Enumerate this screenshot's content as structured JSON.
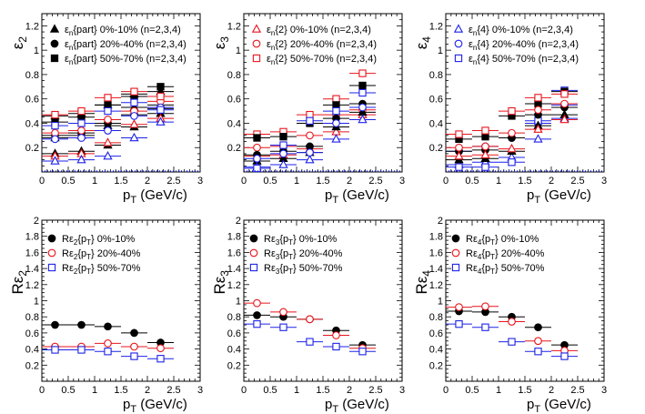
{
  "chart_data": [
    {
      "type": "scatter",
      "ylabel": "ε",
      "ylabel_sub": "2",
      "xlabel": "p",
      "xlabel_sub": "T",
      "xlabel_unit": " (GeV/c)",
      "xlim": [
        0,
        3
      ],
      "ylim": [
        0,
        1.3
      ],
      "xticks": [
        0,
        0.5,
        1,
        1.5,
        2,
        2.5,
        3
      ],
      "xtick_labels": [
        "0",
        "0.5",
        "1",
        "1.5",
        "2",
        "2.5",
        "3"
      ],
      "yticks": [
        0.2,
        0.4,
        0.6,
        0.8,
        1,
        1.2
      ],
      "ytick_labels": [
        "0.2",
        "0.4",
        "0.6",
        "0.8",
        "1",
        "1.2"
      ],
      "x": [
        0.25,
        0.75,
        1.25,
        1.75,
        2.25
      ],
      "series": [
        {
          "legend_prefix": "ε",
          "legend_sub": "n",
          "legend_brace": "part",
          "legend_text": " 0%-10% (n=2,3,4)",
          "marker": "triangle",
          "fill": true,
          "color": "#000000",
          "sets": [
            {
              "values": [
                0.15,
                0.17,
                0.22,
                0.37,
                0.48
              ]
            },
            {
              "values": [
                0.28,
                0.3,
                0.38,
                0.53,
                0.55
              ]
            },
            {
              "values": [
                0.46,
                0.48,
                0.55,
                0.64,
                0.66
              ]
            }
          ]
        },
        {
          "legend_prefix": "ε",
          "legend_sub": "n",
          "legend_brace": "part",
          "legend_text": " 20%-40% (n=2,3,4)",
          "marker": "circle",
          "fill": true,
          "color": "#000000",
          "sets": [
            {
              "values": [
                0.3,
                0.32,
                0.4,
                0.47,
                0.52
              ]
            }
          ]
        },
        {
          "legend_prefix": "ε",
          "legend_sub": "n",
          "legend_brace": "part",
          "legend_text": " 50%-70% (n=2,3,4)",
          "marker": "square",
          "fill": true,
          "color": "#000000",
          "sets": [
            {
              "values": [
                0.41,
                0.45,
                0.55,
                0.62,
                0.7
              ]
            }
          ]
        },
        {
          "marker": "triangle",
          "fill": false,
          "color": "#e8141c",
          "sets": [
            {
              "values": [
                0.13,
                0.15,
                0.24,
                0.39,
                0.44
              ]
            }
          ]
        },
        {
          "marker": "circle",
          "fill": false,
          "color": "#e8141c",
          "sets": [
            {
              "values": [
                0.32,
                0.34,
                0.43,
                0.5,
                0.58
              ]
            }
          ]
        },
        {
          "marker": "square",
          "fill": false,
          "color": "#e8141c",
          "sets": [
            {
              "values": [
                0.47,
                0.5,
                0.61,
                0.66,
                0.62
              ]
            }
          ]
        },
        {
          "marker": "triangle",
          "fill": false,
          "color": "#1c22e8",
          "sets": [
            {
              "values": [
                0.09,
                0.1,
                0.13,
                0.28,
                0.41
              ]
            }
          ]
        },
        {
          "marker": "circle",
          "fill": false,
          "color": "#1c22e8",
          "sets": [
            {
              "values": [
                0.27,
                0.28,
                0.34,
                0.46,
                0.53
              ]
            }
          ]
        },
        {
          "marker": "square",
          "fill": false,
          "color": "#1c22e8",
          "sets": [
            {
              "values": [
                0.38,
                0.4,
                0.5,
                0.57,
                0.51
              ]
            }
          ]
        }
      ]
    },
    {
      "type": "scatter",
      "ylabel": "ε",
      "ylabel_sub": "3",
      "xlabel": "p",
      "xlabel_sub": "T",
      "xlabel_unit": " (GeV/c)",
      "xlim": [
        0,
        3
      ],
      "ylim": [
        0,
        1.3
      ],
      "xticks": [
        0,
        0.5,
        1,
        1.5,
        2,
        2.5,
        3
      ],
      "xtick_labels": [
        "0",
        "0.5",
        "1",
        "1.5",
        "2",
        "2.5",
        "3"
      ],
      "yticks": [
        0.2,
        0.4,
        0.6,
        0.8,
        1,
        1.2
      ],
      "ytick_labels": [
        "0.2",
        "0.4",
        "0.6",
        "0.8",
        "1",
        "1.2"
      ],
      "x": [
        0.25,
        0.75,
        1.25,
        1.75,
        2.25
      ],
      "series": [
        {
          "legend_prefix": "ε",
          "legend_sub": "n",
          "legend_brace": "2",
          "legend_text": " 0%-10% (n=2,3,4)",
          "marker": "triangle",
          "fill": false,
          "color": "#e8141c",
          "sets": [
            {
              "values": [
                0.13,
                0.14,
                0.19,
                0.33,
                0.47
              ]
            }
          ]
        },
        {
          "legend_prefix": "ε",
          "legend_sub": "n",
          "legend_brace": "2",
          "legend_text": " 20%-40% (n=2,3,4)",
          "marker": "circle",
          "fill": false,
          "color": "#e8141c",
          "sets": [
            {
              "values": [
                0.2,
                0.21,
                0.3,
                0.47,
                0.51
              ]
            }
          ]
        },
        {
          "legend_prefix": "ε",
          "legend_sub": "n",
          "legend_brace": "2",
          "legend_text": " 50%-70% (n=2,3,4)",
          "marker": "square",
          "fill": false,
          "color": "#e8141c",
          "sets": [
            {
              "values": [
                0.31,
                0.33,
                0.47,
                0.6,
                0.81
              ]
            }
          ]
        },
        {
          "marker": "triangle",
          "fill": true,
          "color": "#000000",
          "sets": [
            {
              "values": [
                0.09,
                0.11,
                0.16,
                0.37,
                0.49
              ]
            }
          ]
        },
        {
          "marker": "circle",
          "fill": true,
          "color": "#000000",
          "sets": [
            {
              "values": [
                0.14,
                0.17,
                0.21,
                0.44,
                0.56
              ]
            }
          ]
        },
        {
          "marker": "square",
          "fill": true,
          "color": "#000000",
          "sets": [
            {
              "values": [
                0.28,
                0.29,
                0.4,
                0.55,
                0.71
              ]
            }
          ]
        },
        {
          "marker": "triangle",
          "fill": false,
          "color": "#1c22e8",
          "sets": [
            {
              "values": [
                0.04,
                0.06,
                0.1,
                0.27,
                0.43
              ]
            }
          ]
        },
        {
          "marker": "circle",
          "fill": false,
          "color": "#1c22e8",
          "sets": [
            {
              "values": [
                0.11,
                0.15,
                0.16,
                0.4,
                0.53
              ]
            }
          ]
        },
        {
          "marker": "square",
          "fill": false,
          "color": "#1c22e8",
          "sets": [
            {
              "values": [
                0.03,
                0.22,
                0.42,
                0.5,
                0.65
              ]
            }
          ]
        }
      ]
    },
    {
      "type": "scatter",
      "ylabel": "ε",
      "ylabel_sub": "4",
      "xlabel": "p",
      "xlabel_sub": "T",
      "xlabel_unit": " (GeV/c)",
      "xlim": [
        0,
        3
      ],
      "ylim": [
        0,
        1.3
      ],
      "xticks": [
        0,
        0.5,
        1,
        1.5,
        2,
        2.5,
        3
      ],
      "xtick_labels": [
        "0",
        "0.5",
        "1",
        "1.5",
        "2",
        "2.5",
        "3"
      ],
      "yticks": [
        0.2,
        0.4,
        0.6,
        0.8,
        1,
        1.2
      ],
      "ytick_labels": [
        "0.2",
        "0.4",
        "0.6",
        "0.8",
        "1",
        "1.2"
      ],
      "x": [
        0.25,
        0.75,
        1.25,
        1.75,
        2.25
      ],
      "series": [
        {
          "legend_prefix": "ε",
          "legend_sub": "n",
          "legend_brace": "4",
          "legend_text": " 0%-10% (n=2,3,4)",
          "marker": "triangle",
          "fill": false,
          "color": "#1c22e8",
          "sets": [
            {
              "values": [
                0.06,
                0.08,
                0.12,
                0.27,
                0.44
              ]
            }
          ]
        },
        {
          "legend_prefix": "ε",
          "legend_sub": "n",
          "legend_brace": "4",
          "legend_text": " 20%-40% (n=2,3,4)",
          "marker": "circle",
          "fill": false,
          "color": "#1c22e8",
          "sets": [
            {
              "values": [
                0.17,
                0.21,
                0.28,
                0.4,
                0.55
              ]
            }
          ]
        },
        {
          "legend_prefix": "ε",
          "legend_sub": "n",
          "legend_brace": "4",
          "legend_text": " 50%-70% (n=2,3,4)",
          "marker": "square",
          "fill": false,
          "color": "#1c22e8",
          "sets": [
            {
              "values": [
                0.04,
                0.04,
                0.08,
                0.42,
                0.67
              ]
            }
          ]
        },
        {
          "marker": "triangle",
          "fill": true,
          "color": "#000000",
          "sets": [
            {
              "values": [
                0.1,
                0.11,
                0.17,
                0.38,
                0.47
              ]
            }
          ]
        },
        {
          "marker": "circle",
          "fill": true,
          "color": "#000000",
          "sets": [
            {
              "values": [
                0.17,
                0.18,
                0.28,
                0.47,
                0.53
              ]
            }
          ]
        },
        {
          "marker": "square",
          "fill": true,
          "color": "#000000",
          "sets": [
            {
              "values": [
                0.27,
                0.29,
                0.46,
                0.56,
                0.66
              ]
            }
          ]
        },
        {
          "marker": "triangle",
          "fill": false,
          "color": "#e8141c",
          "sets": [
            {
              "values": [
                0.13,
                0.14,
                0.19,
                0.35,
                0.43
              ]
            }
          ]
        },
        {
          "marker": "circle",
          "fill": false,
          "color": "#e8141c",
          "sets": [
            {
              "values": [
                0.2,
                0.21,
                0.32,
                0.51,
                0.56
              ]
            }
          ]
        },
        {
          "marker": "square",
          "fill": false,
          "color": "#e8141c",
          "sets": [
            {
              "values": [
                0.31,
                0.34,
                0.5,
                0.61,
                0.64
              ]
            }
          ]
        }
      ]
    },
    {
      "type": "scatter",
      "ylabel": "Rε",
      "ylabel_sub": "2",
      "xlabel": "p",
      "xlabel_sub": "T",
      "xlabel_unit": " (GeV/c)",
      "xlim": [
        0,
        3
      ],
      "ylim": [
        0,
        2
      ],
      "xticks": [
        0,
        0.5,
        1,
        1.5,
        2,
        2.5,
        3
      ],
      "xtick_labels": [
        "0",
        "0.5",
        "1",
        "1.5",
        "2",
        "2.5",
        "3"
      ],
      "yticks": [
        0.2,
        0.4,
        0.6,
        0.8,
        1,
        1.2,
        1.4,
        1.6,
        1.8,
        2
      ],
      "ytick_labels": [
        "0.2",
        "0.4",
        "0.6",
        "0.8",
        "1",
        "1.2",
        "1.4",
        "1.6",
        "1.8",
        "2"
      ],
      "x": [
        0.25,
        0.75,
        1.25,
        1.75,
        2.25
      ],
      "series": [
        {
          "legend_prefix": "Rε",
          "legend_sub": "2",
          "legend_brace": "p",
          "legend_brace_sub": "T",
          "legend_text": " 0%-10%",
          "marker": "circle",
          "fill": true,
          "color": "#000000",
          "sets": [
            {
              "values": [
                0.7,
                0.7,
                0.68,
                0.6,
                0.48
              ]
            }
          ]
        },
        {
          "legend_prefix": "Rε",
          "legend_sub": "2",
          "legend_brace": "p",
          "legend_brace_sub": "T",
          "legend_text": " 20%-40%",
          "marker": "circle",
          "fill": false,
          "color": "#e8141c",
          "sets": [
            {
              "values": [
                0.43,
                0.43,
                0.47,
                0.43,
                0.41
              ]
            }
          ]
        },
        {
          "legend_prefix": "Rε",
          "legend_sub": "2",
          "legend_brace": "p",
          "legend_brace_sub": "T",
          "legend_text": " 50%-70%",
          "marker": "square",
          "fill": false,
          "color": "#1c22e8",
          "sets": [
            {
              "values": [
                0.39,
                0.39,
                0.37,
                0.31,
                0.28
              ]
            }
          ]
        }
      ]
    },
    {
      "type": "scatter",
      "ylabel": "Rε",
      "ylabel_sub": "3",
      "xlabel": "p",
      "xlabel_sub": "T",
      "xlabel_unit": " (GeV/c)",
      "xlim": [
        0,
        3
      ],
      "ylim": [
        0,
        2
      ],
      "xticks": [
        0,
        0.5,
        1,
        1.5,
        2,
        2.5,
        3
      ],
      "xtick_labels": [
        "0",
        "0.5",
        "1",
        "1.5",
        "2",
        "2.5",
        "3"
      ],
      "yticks": [
        0.2,
        0.4,
        0.6,
        0.8,
        1,
        1.2,
        1.4,
        1.6,
        1.8,
        2
      ],
      "ytick_labels": [
        "0.2",
        "0.4",
        "0.6",
        "0.8",
        "1",
        "1.2",
        "1.4",
        "1.6",
        "1.8",
        "2"
      ],
      "x": [
        0.25,
        0.75,
        1.25,
        1.75,
        2.25
      ],
      "series": [
        {
          "legend_prefix": "Rε",
          "legend_sub": "3",
          "legend_brace": "p",
          "legend_brace_sub": "T",
          "legend_text": " 0%-10%",
          "marker": "circle",
          "fill": true,
          "color": "#000000",
          "sets": [
            {
              "values": [
                0.82,
                0.8,
                0.77,
                0.63,
                0.45
              ]
            }
          ]
        },
        {
          "legend_prefix": "Rε",
          "legend_sub": "3",
          "legend_brace": "p",
          "legend_brace_sub": "T",
          "legend_text": " 20%-40%",
          "marker": "circle",
          "fill": false,
          "color": "#e8141c",
          "sets": [
            {
              "values": [
                0.97,
                0.86,
                0.77,
                0.57,
                0.41
              ]
            }
          ]
        },
        {
          "legend_prefix": "Rε",
          "legend_sub": "3",
          "legend_brace": "p",
          "legend_brace_sub": "T",
          "legend_text": " 50%-70%",
          "marker": "square",
          "fill": false,
          "color": "#1c22e8",
          "sets": [
            {
              "values": [
                0.71,
                0.67,
                0.49,
                0.43,
                0.37
              ]
            }
          ]
        }
      ]
    },
    {
      "type": "scatter",
      "ylabel": "Rε",
      "ylabel_sub": "4",
      "xlabel": "p",
      "xlabel_sub": "T",
      "xlabel_unit": " (GeV/c)",
      "xlim": [
        0,
        3
      ],
      "ylim": [
        0,
        2
      ],
      "xticks": [
        0,
        0.5,
        1,
        1.5,
        2,
        2.5,
        3
      ],
      "xtick_labels": [
        "0",
        "0.5",
        "1",
        "1.5",
        "2",
        "2.5",
        "3"
      ],
      "yticks": [
        0.2,
        0.4,
        0.6,
        0.8,
        1,
        1.2,
        1.4,
        1.6,
        1.8,
        2
      ],
      "ytick_labels": [
        "0.2",
        "0.4",
        "0.6",
        "0.8",
        "1",
        "1.2",
        "1.4",
        "1.6",
        "1.8",
        "2"
      ],
      "x": [
        0.25,
        0.75,
        1.25,
        1.75,
        2.25
      ],
      "series": [
        {
          "legend_prefix": "Rε",
          "legend_sub": "4",
          "legend_brace": "p",
          "legend_brace_sub": "T",
          "legend_text": " 0%-10%",
          "marker": "circle",
          "fill": true,
          "color": "#000000",
          "sets": [
            {
              "values": [
                0.87,
                0.86,
                0.8,
                0.67,
                0.45
              ]
            }
          ]
        },
        {
          "legend_prefix": "Rε",
          "legend_sub": "4",
          "legend_brace": "p",
          "legend_brace_sub": "T",
          "legend_text": " 20%-40%",
          "marker": "circle",
          "fill": false,
          "color": "#e8141c",
          "sets": [
            {
              "values": [
                0.92,
                0.93,
                0.74,
                0.5,
                0.38
              ]
            }
          ]
        },
        {
          "legend_prefix": "Rε",
          "legend_sub": "4",
          "legend_brace": "p",
          "legend_brace_sub": "T",
          "legend_text": " 50%-70%",
          "marker": "square",
          "fill": false,
          "color": "#1c22e8",
          "sets": [
            {
              "values": [
                0.71,
                0.67,
                0.49,
                0.37,
                0.31
              ]
            }
          ]
        }
      ]
    }
  ]
}
